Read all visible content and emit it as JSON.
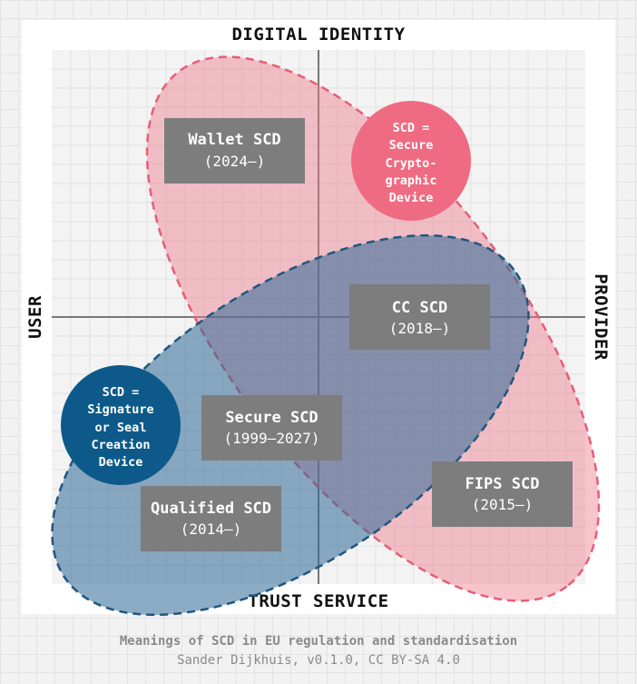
{
  "axes": {
    "top": "DIGITAL IDENTITY",
    "bottom": "TRUST SERVICE",
    "left": "USER",
    "right": "PROVIDER"
  },
  "colors": {
    "pink": "#f07d8e",
    "pink_circle": "#ef6b82",
    "blue": "#2c6893",
    "blue_circle": "#0d5a8a",
    "box": "#7d7d7d"
  },
  "boxes": {
    "wallet": {
      "title": "Wallet SCD",
      "years": "(2024–)"
    },
    "cc": {
      "title": "CC SCD",
      "years": "(2018–)"
    },
    "secure": {
      "title": "Secure SCD",
      "years": "(1999–2027)"
    },
    "qualified": {
      "title": "Qualified SCD",
      "years": "(2014–)"
    },
    "fips": {
      "title": "FIPS SCD",
      "years": "(2015–)"
    }
  },
  "circles": {
    "crypto": [
      "SCD =",
      "Secure",
      "Crypto-",
      "graphic",
      "Device"
    ],
    "signature": [
      "SCD =",
      "Signature",
      "or Seal",
      "Creation",
      "Device"
    ]
  },
  "footer": {
    "title": "Meanings of SCD in EU regulation and standardisation",
    "subtitle": "Sander Dijkhuis, v0.1.0, CC BY-SA 4.0"
  }
}
